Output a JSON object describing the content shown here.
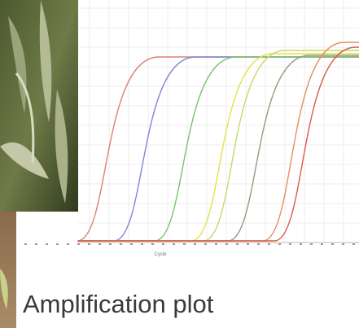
{
  "chart": {
    "x_label": "Cycle"
  },
  "caption": "Amplification plot"
}
